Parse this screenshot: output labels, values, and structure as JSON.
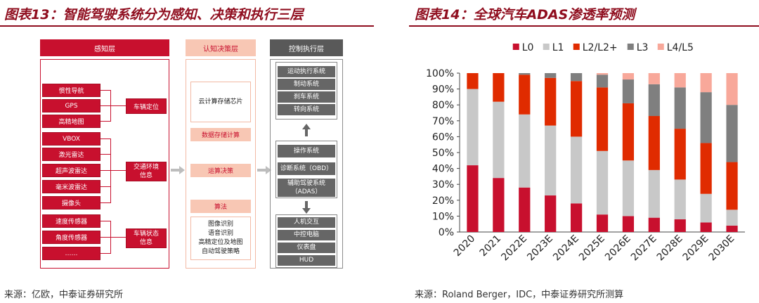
{
  "left_figure": {
    "title": "图表13：智能驾驶系统分为感知、决策和执行三层",
    "source": "来源：亿欧，中泰证券研究所",
    "perception": {
      "header": "感知层",
      "sensors": [
        "惯性导航",
        "GPS",
        "高精地图",
        "VBOX",
        "激光雷达",
        "超声波雷达",
        "毫米波雷达",
        "摄像头",
        "速度传感器",
        "角度传感器",
        "……"
      ],
      "outputs": [
        "车辆定位",
        "交通环境\n信息",
        "车辆状态\n信息"
      ]
    },
    "decision": {
      "header": "认知决策层",
      "chip_box": "云计算存储芯片",
      "data_compute": "数据存储计算",
      "compute_decision": "运算决策",
      "algorithm": "算法",
      "algorithm_items": "图像识别\n语音识别\n高精定位及地图\n自动驾驶策略"
    },
    "execution": {
      "header": "控制执行层",
      "top_group": [
        "运动执行系统",
        "制动系统",
        "刹车系统",
        "转向系统"
      ],
      "mid_group": [
        "操作系统",
        "诊断系统（OBD）",
        "辅助驾驶系统\n（ADAS）"
      ],
      "bottom_group": [
        "人机交互",
        "中控电脑",
        "仪表盘",
        "HUD"
      ]
    }
  },
  "right_figure": {
    "title": "图表14：全球汽车ADAS渗透率预测",
    "source": "来源：Roland Berger，IDC，中泰证券研究所测算"
  },
  "chart_data": {
    "type": "bar",
    "stacked": true,
    "categories": [
      "2020",
      "2021",
      "2022E",
      "2023E",
      "2024E",
      "2025E",
      "2026E",
      "2027E",
      "2028E",
      "2029E",
      "2030E"
    ],
    "series": [
      {
        "name": "L0",
        "color": "#c8102e",
        "values": [
          42,
          34,
          28,
          23,
          18,
          11,
          10,
          9,
          8,
          6,
          4
        ]
      },
      {
        "name": "L1",
        "color": "#c8c8c8",
        "values": [
          48,
          48,
          46,
          44,
          42,
          40,
          35,
          30,
          25,
          18,
          10
        ]
      },
      {
        "name": "L2/L2+",
        "color": "#e02b00",
        "values": [
          10,
          18,
          25,
          30,
          35,
          40,
          36,
          34,
          32,
          32,
          30
        ]
      },
      {
        "name": "L3",
        "color": "#7f7f7f",
        "values": [
          0,
          0,
          1,
          3,
          5,
          8,
          15,
          20,
          26,
          32,
          36
        ]
      },
      {
        "name": "L4/L5",
        "color": "#f8a89a",
        "values": [
          0,
          0,
          0,
          0,
          0,
          1,
          4,
          7,
          9,
          12,
          20
        ]
      }
    ],
    "ylim": [
      0,
      100
    ],
    "yticks": [
      "0%",
      "10%",
      "20%",
      "30%",
      "40%",
      "50%",
      "60%",
      "70%",
      "80%",
      "90%",
      "100%"
    ],
    "legend_position": "top",
    "grid": false
  }
}
